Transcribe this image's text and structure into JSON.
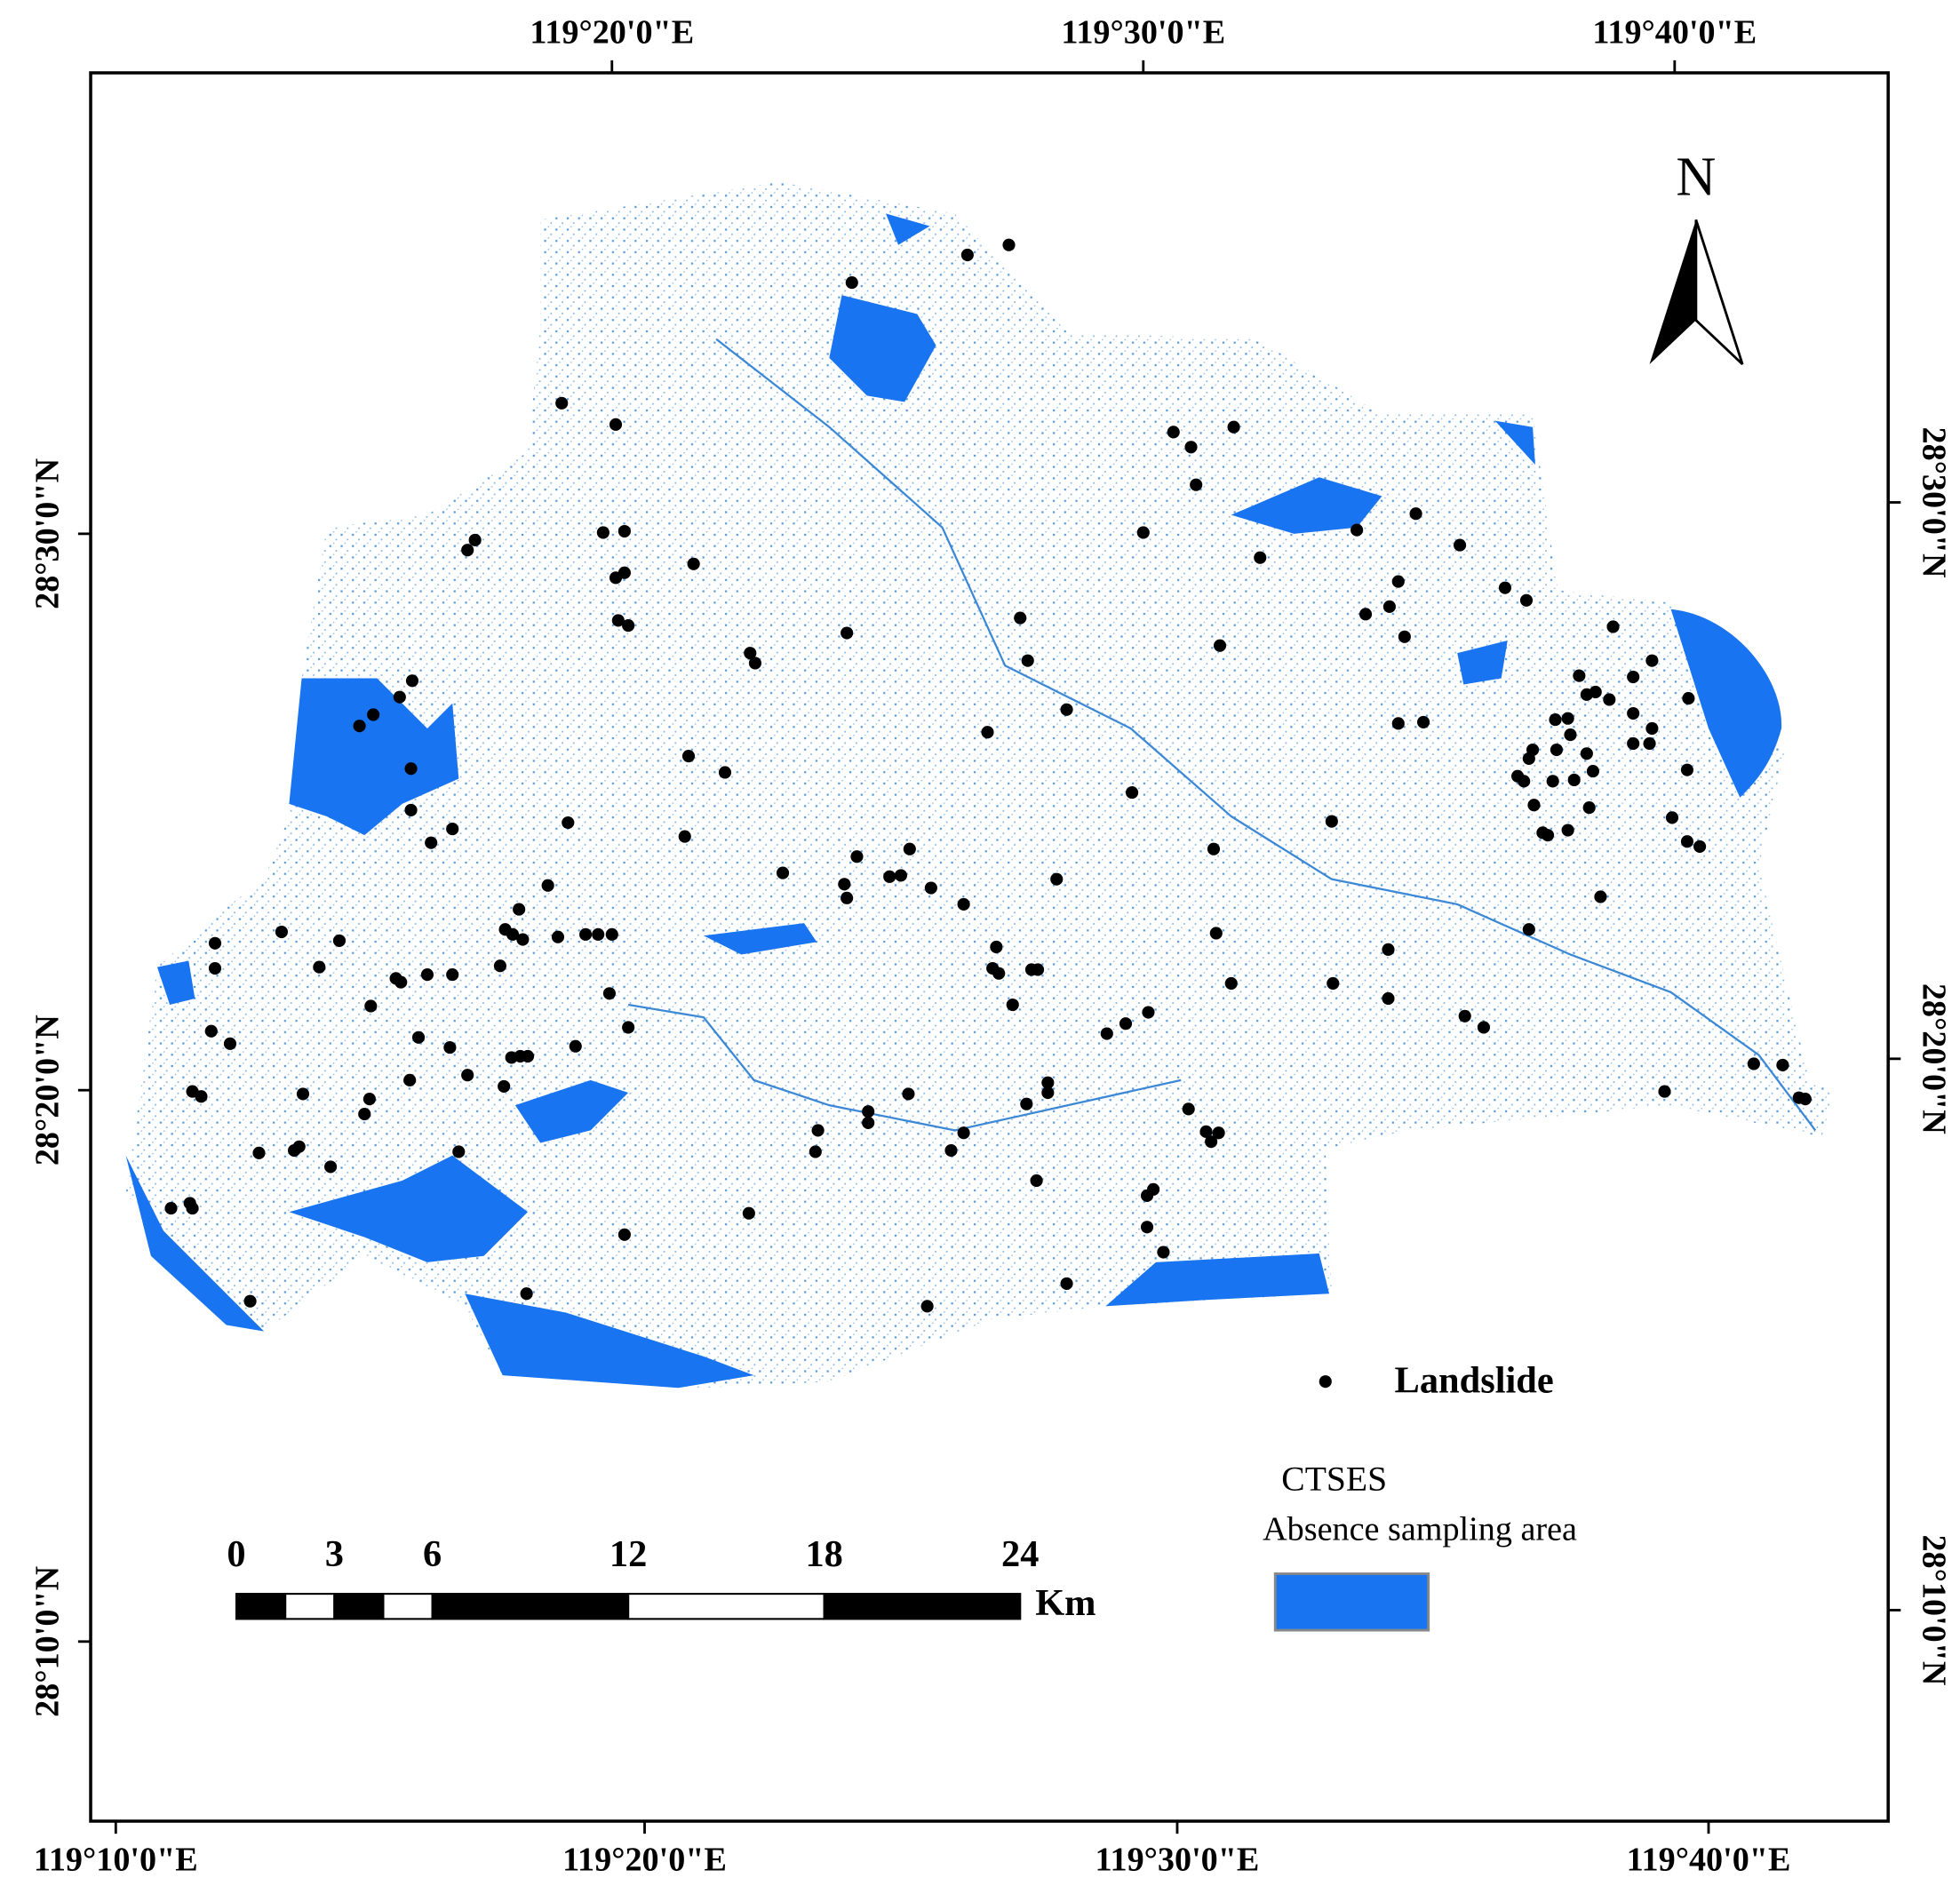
{
  "map": {
    "top_labels": [
      "119°20'0\"E",
      "119°30'0\"E",
      "119°40'0\"E"
    ],
    "bottom_labels": [
      "119°10'0\"E",
      "119°20'0\"E",
      "119°30'0\"E",
      "119°40'0\"E"
    ],
    "left_labels": [
      "28°30'0\"N",
      "28°20'0\"N",
      "28°10'0\"N"
    ],
    "right_labels": [
      "28°30'0\"N",
      "28°20'0\"N",
      "28°10'0\"N"
    ],
    "north": "N",
    "legend": {
      "point_label": "Landslide",
      "title": "CTSES",
      "area_label": "Absence sampling area"
    },
    "scale_bar": {
      "ticks": [
        0,
        3,
        6,
        12,
        18,
        24
      ],
      "unit": "Km"
    }
  }
}
